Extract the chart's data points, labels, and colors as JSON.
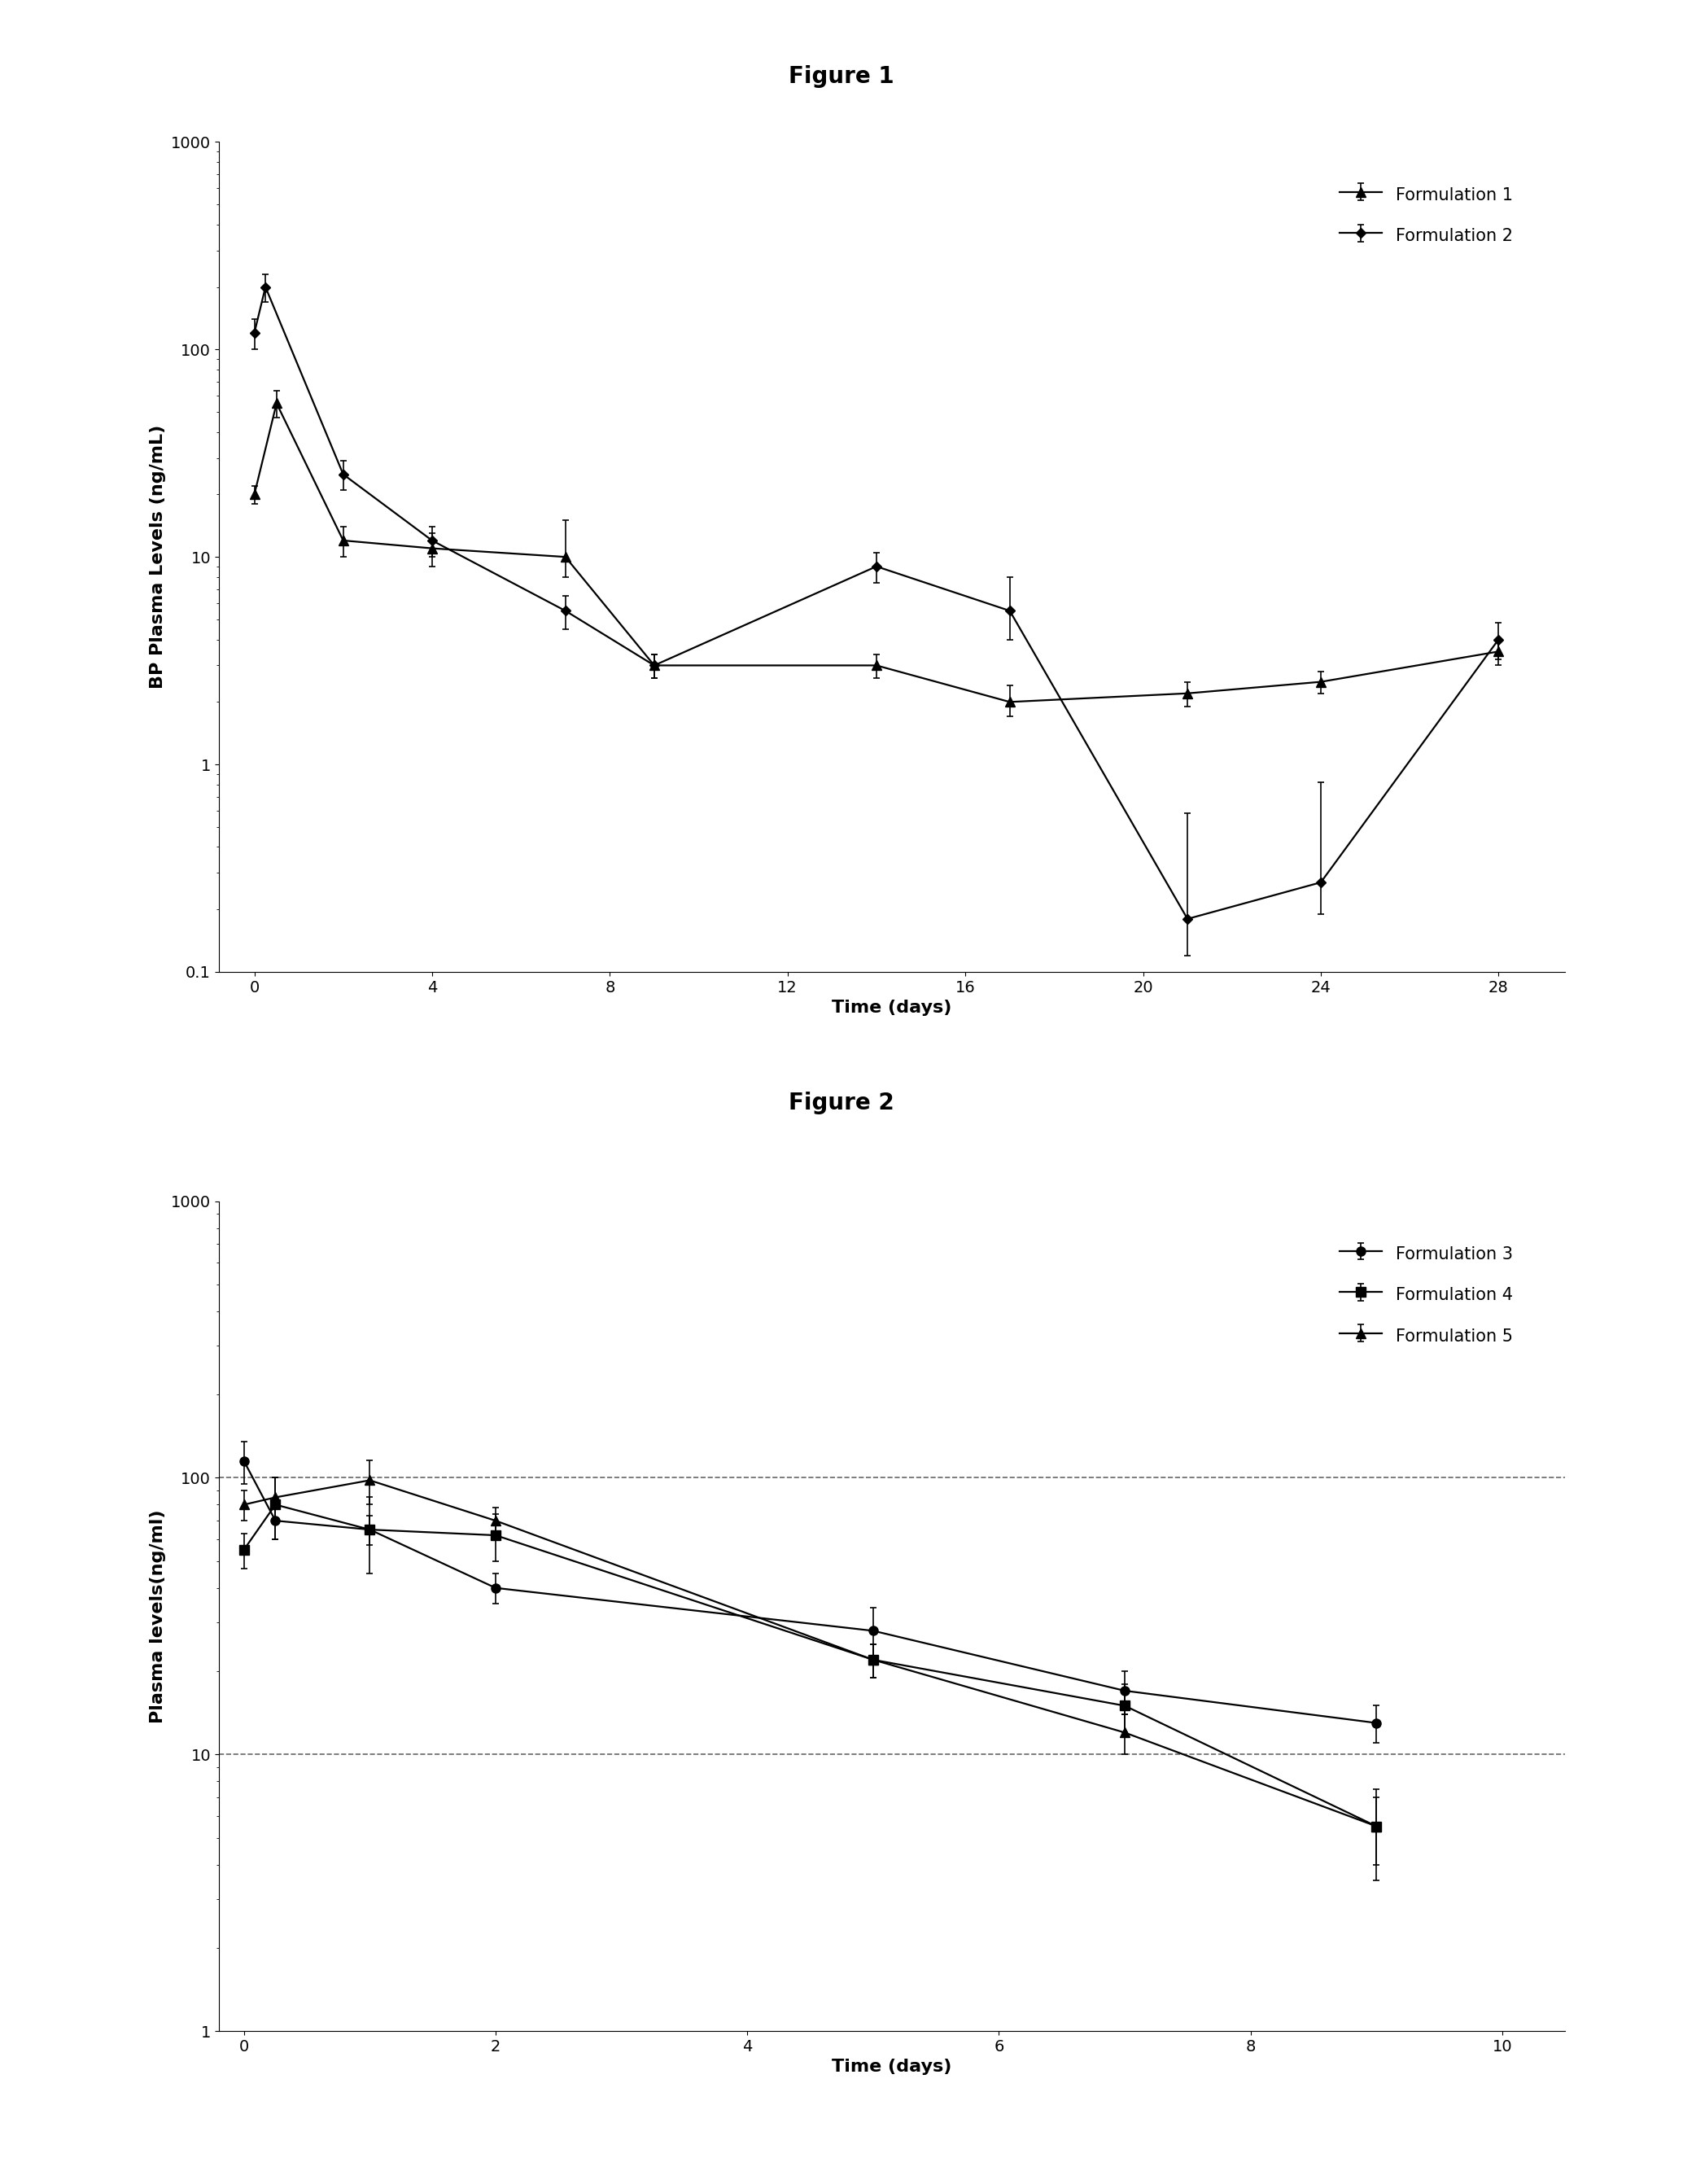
{
  "fig1_title": "Figure 1",
  "fig2_title": "Figure 2",
  "fig1_ylabel": "BP Plasma Levels (ng/mL)",
  "fig1_xlabel": "Time (days)",
  "fig1_ylim": [
    0.1,
    1000
  ],
  "fig1_xlim": [
    -0.8,
    29.5
  ],
  "fig1_xticks": [
    0,
    4,
    8,
    12,
    16,
    20,
    24,
    28
  ],
  "form1_x": [
    0,
    0.5,
    2,
    4,
    7,
    9,
    14,
    17,
    21,
    24,
    28
  ],
  "form1_y": [
    20,
    55,
    12,
    11,
    10,
    3.0,
    3.0,
    2.0,
    2.2,
    2.5,
    3.5
  ],
  "form1_yerr_lo": [
    2,
    8,
    2,
    2,
    2,
    0.4,
    0.4,
    0.3,
    0.3,
    0.3,
    0.5
  ],
  "form1_yerr_hi": [
    2,
    8,
    2,
    2,
    5,
    0.4,
    0.4,
    0.4,
    0.3,
    0.3,
    0.5
  ],
  "form2_x": [
    0,
    0.25,
    2,
    4,
    7,
    9,
    14,
    17,
    21,
    24,
    28
  ],
  "form2_y": [
    120,
    200,
    25,
    12,
    5.5,
    3.0,
    9,
    5.5,
    0.18,
    0.27,
    4.0
  ],
  "form2_yerr_lo": [
    20,
    30,
    4,
    2,
    1.0,
    0.4,
    1.5,
    1.5,
    0.06,
    0.08,
    0.8
  ],
  "form2_yerr_hi": [
    20,
    30,
    4,
    2,
    1.0,
    0.4,
    1.5,
    2.5,
    0.4,
    0.55,
    0.8
  ],
  "fig2_ylabel": "Plasma levels(ng/ml)",
  "fig2_xlabel": "Time (days)",
  "fig2_ylim": [
    1,
    1000
  ],
  "fig2_xlim": [
    -0.2,
    10.5
  ],
  "fig2_xticks": [
    0,
    2,
    4,
    6,
    8,
    10
  ],
  "fig2_hlines": [
    100,
    10
  ],
  "form3_x": [
    0,
    0.25,
    1,
    2,
    5,
    7,
    9.0
  ],
  "form3_y": [
    115,
    70,
    65,
    40,
    28,
    17,
    13
  ],
  "form3_yerr_lo": [
    20,
    10,
    8,
    5,
    6,
    3,
    2
  ],
  "form3_yerr_hi": [
    20,
    10,
    8,
    5,
    6,
    3,
    2
  ],
  "form4_x": [
    0,
    0.25,
    1,
    2,
    5,
    7,
    9.0
  ],
  "form4_y": [
    55,
    80,
    65,
    62,
    22,
    15,
    5.5
  ],
  "form4_yerr_lo": [
    8,
    20,
    20,
    12,
    3,
    3,
    2
  ],
  "form4_yerr_hi": [
    8,
    20,
    20,
    12,
    3,
    3,
    2
  ],
  "form5_x": [
    0,
    0.25,
    1,
    2,
    5,
    7,
    9.0
  ],
  "form5_y": [
    80,
    85,
    98,
    70,
    22,
    12,
    5.5
  ],
  "form5_yerr_lo": [
    10,
    15,
    18,
    8,
    3,
    2,
    1.5
  ],
  "form5_yerr_hi": [
    10,
    15,
    18,
    8,
    3,
    2,
    1.5
  ],
  "line_color": "#000000",
  "background_color": "#ffffff",
  "title_fontsize": 20,
  "label_fontsize": 16,
  "tick_fontsize": 14,
  "legend_fontsize": 15
}
